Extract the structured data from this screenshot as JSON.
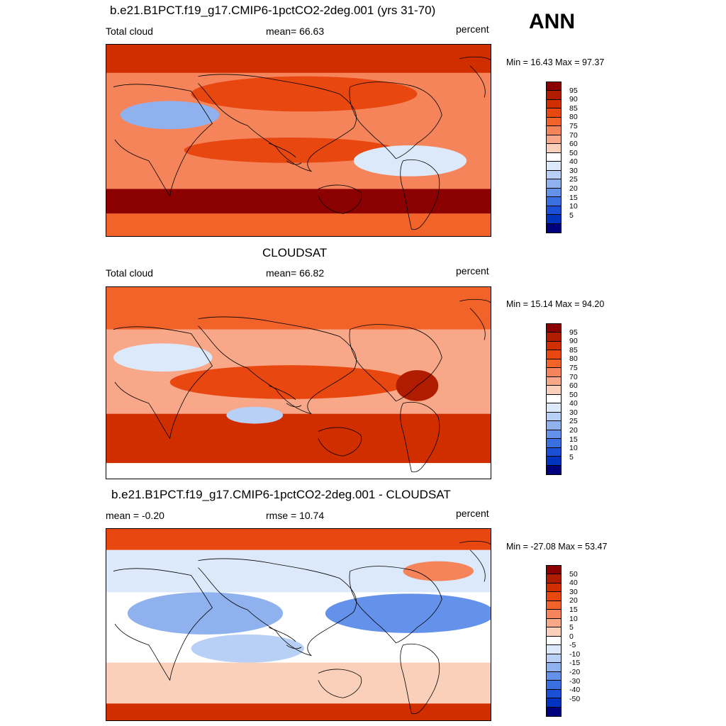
{
  "season": "ANN",
  "panels": [
    {
      "title": "b.e21.B1PCT.f19_g17.CMIP6-1pctCO2-2deg.001 (yrs 31-70)",
      "left_label": "Total cloud",
      "center_label": "mean=  66.63",
      "right_label": "percent",
      "minmax": "Min =  16.43 Max =  97.37",
      "colorbar": {
        "labels": [
          "95",
          "90",
          "85",
          "80",
          "75",
          "70",
          "60",
          "50",
          "40",
          "30",
          "25",
          "20",
          "15",
          "10",
          "5"
        ],
        "colors": [
          "#8b0000",
          "#b01c00",
          "#d12e00",
          "#e84710",
          "#f2632a",
          "#f5845a",
          "#f8a888",
          "#fbd0ba",
          "#ffffff",
          "#dce9fb",
          "#b8d0f5",
          "#8fb2ef",
          "#6492ea",
          "#3a6fe0",
          "#1a4fd6",
          "#0033bf",
          "#00007f"
        ]
      },
      "map_style": "model"
    },
    {
      "title": "CLOUDSAT",
      "left_label": "Total cloud",
      "center_label": "mean=  66.82",
      "right_label": "percent",
      "minmax": "Min =  15.14 Max =  94.20",
      "colorbar": {
        "labels": [
          "95",
          "90",
          "85",
          "80",
          "75",
          "70",
          "60",
          "50",
          "40",
          "30",
          "25",
          "20",
          "15",
          "10",
          "5"
        ],
        "colors": [
          "#8b0000",
          "#b01c00",
          "#d12e00",
          "#e84710",
          "#f2632a",
          "#f5845a",
          "#f8a888",
          "#fbd0ba",
          "#ffffff",
          "#dce9fb",
          "#b8d0f5",
          "#8fb2ef",
          "#6492ea",
          "#3a6fe0",
          "#1a4fd6",
          "#0033bf",
          "#00007f"
        ]
      },
      "map_style": "obs"
    },
    {
      "title": "b.e21.B1PCT.f19_g17.CMIP6-1pctCO2-2deg.001 - CLOUDSAT",
      "left_label": "mean =  -0.20",
      "center_label": "rmse =  10.74",
      "right_label": "percent",
      "minmax": "Min = -27.08 Max =  53.47",
      "colorbar": {
        "labels": [
          "50",
          "40",
          "30",
          "20",
          "15",
          "10",
          "5",
          "0",
          "-5",
          "-10",
          "-15",
          "-20",
          "-30",
          "-40",
          "-50"
        ],
        "colors": [
          "#8b0000",
          "#b01c00",
          "#d12e00",
          "#e84710",
          "#f2632a",
          "#f5845a",
          "#f8a888",
          "#fbd0ba",
          "#ffffff",
          "#dce9fb",
          "#b8d0f5",
          "#8fb2ef",
          "#6492ea",
          "#3a6fe0",
          "#1a4fd6",
          "#0033bf",
          "#00007f"
        ]
      },
      "map_style": "diff"
    }
  ]
}
